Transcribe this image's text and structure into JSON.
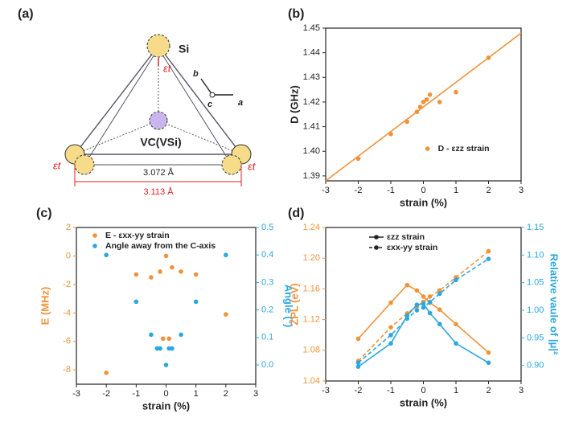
{
  "diagram": {
    "panel_label": "(a)",
    "atom_label": "Si",
    "strain_labels": [
      "εt",
      "εt",
      "εt"
    ],
    "vacancy_label": "VC(VSi)",
    "inner_distance": "3.072 Å",
    "outer_distance": "3.113 Å",
    "axis_labels": [
      "a",
      "b",
      "c"
    ]
  },
  "chart_data": [
    {
      "type": "scatter",
      "panel_label": "(b)",
      "xlabel": "strain (%)",
      "ylabel": "D (GHz)",
      "xlim": [
        -3,
        3
      ],
      "xticks": [
        -3,
        -2,
        -1,
        0,
        1,
        2,
        3
      ],
      "ylim": [
        1.388,
        1.45
      ],
      "yticks": [
        1.39,
        {
          "value": 1.4,
          "label": "1.40"
        },
        1.41,
        1.42,
        1.43,
        1.44,
        1.45
      ],
      "legend": "lower right",
      "series": [
        {
          "name": "D - εzz strain",
          "color": "#f0923a",
          "mode": "markers",
          "x": [
            -2,
            -1,
            -0.5,
            -0.2,
            -0.1,
            0,
            0.1,
            0.2,
            0.5,
            1,
            2
          ],
          "values": [
            1.397,
            1.407,
            1.412,
            1.416,
            1.418,
            1.42,
            1.421,
            1.423,
            1.42,
            1.424,
            1.438
          ]
        },
        {
          "color": "#f0923a",
          "mode": "lines",
          "x": [
            -3,
            3
          ],
          "values": [
            1.388,
            1.448
          ]
        }
      ]
    },
    {
      "type": "scatter",
      "panel_label": "(c)",
      "xlabel": "strain (%)",
      "ylabel": "E (MHz)",
      "y2label": "Angle (°)",
      "ycolor": "#f0923a",
      "y2color": "#2aa7df",
      "xlim": [
        -3,
        3
      ],
      "xticks": [
        -3,
        -2,
        -1,
        0,
        1,
        2,
        3
      ],
      "ylim": [
        -9,
        2
      ],
      "yticks": [
        2,
        0,
        -2,
        -4,
        -6,
        -8
      ],
      "y2lim": [
        -0.07,
        0.5
      ],
      "y2ticks": [
        {
          "value": 0,
          "label": "0.0"
        },
        0.1,
        0.2,
        0.3,
        0.4,
        0.5
      ],
      "legend": "upper center",
      "series": [
        {
          "name": "E - εxx-yy strain",
          "color": "#f0923a",
          "mode": "markers",
          "x": [
            -2,
            -1,
            -0.5,
            -0.2,
            -0.1,
            0,
            0.1,
            0.2,
            0.5,
            1,
            2
          ],
          "values": [
            -8.2,
            -1.3,
            -1.5,
            -1.1,
            -5.8,
            0,
            -5.8,
            -0.8,
            -1.1,
            -1.3,
            -4.1
          ]
        },
        {
          "name": "Angle away from the C-axis",
          "color": "#2aa7df",
          "mode": "markers",
          "axis": "y2",
          "x": [
            -2,
            -1,
            -0.5,
            -0.3,
            -0.2,
            0,
            0.1,
            0.2,
            0.5,
            1,
            2
          ],
          "values": [
            0.4,
            0.23,
            0.11,
            0.06,
            0.06,
            0,
            0.06,
            0.06,
            0.11,
            0.23,
            0.4
          ]
        }
      ]
    },
    {
      "type": "line",
      "panel_label": "(d)",
      "xlabel": "strain (%)",
      "ylabel": "ZPL (eV)",
      "y2label": "Relative vaule of |μ|²",
      "ycolor": "#f0923a",
      "y2color": "#2aa7df",
      "xlim": [
        -3,
        3
      ],
      "xticks": [
        -3,
        -2,
        -1,
        0,
        1,
        2,
        3
      ],
      "ylim": [
        1.04,
        1.24
      ],
      "yticks": [
        1.04,
        1.08,
        1.12,
        1.16,
        {
          "value": 1.2,
          "label": "1.20"
        },
        1.24
      ],
      "y2lim": [
        0.872,
        1.15
      ],
      "y2ticks": [
        {
          "value": 0.9,
          "label": "0.90"
        },
        0.95,
        {
          "value": 1,
          "label": "1.00"
        },
        1.05,
        {
          "value": 1.1,
          "label": "1.10"
        },
        1.15
      ],
      "legend": "upper left",
      "series": [
        {
          "name": "εzz strain",
          "color": "#f0923a",
          "mode": "lines+markers",
          "dash": false,
          "x": [
            -2,
            -1,
            -0.5,
            -0.2,
            0,
            0.2,
            0.5,
            1,
            2
          ],
          "values": [
            1.095,
            1.142,
            1.165,
            1.158,
            1.15,
            1.142,
            1.133,
            1.114,
            1.077
          ]
        },
        {
          "name": "εxx-yy strain",
          "color": "#f0923a",
          "mode": "lines+markers",
          "dash": true,
          "x": [
            -2,
            -1,
            -0.5,
            -0.2,
            0,
            0.2,
            0.5,
            1,
            2
          ],
          "values": [
            1.066,
            1.11,
            1.128,
            1.137,
            1.143,
            1.15,
            1.158,
            1.175,
            1.209
          ]
        },
        {
          "color": "#2aa7df",
          "mode": "lines+markers",
          "dash": false,
          "axis": "y2",
          "x": [
            -2,
            -1,
            -0.5,
            -0.2,
            0,
            0.2,
            0.5,
            1,
            2
          ],
          "values": [
            0.898,
            0.94,
            0.99,
            1.01,
            1.012,
            0.995,
            0.975,
            0.94,
            0.905
          ]
        },
        {
          "color": "#2aa7df",
          "mode": "lines+markers",
          "dash": true,
          "axis": "y2",
          "x": [
            -2,
            -1,
            -0.5,
            -0.2,
            0,
            0.2,
            0.5,
            1,
            2
          ],
          "values": [
            0.905,
            0.955,
            0.985,
            1.0,
            1.005,
            1.015,
            1.03,
            1.055,
            1.093
          ]
        }
      ]
    }
  ]
}
